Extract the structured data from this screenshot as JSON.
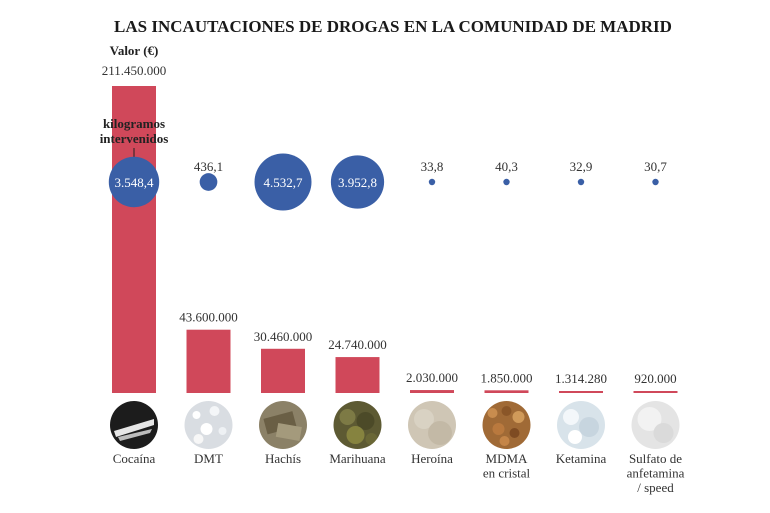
{
  "title": "LAS INCAUTACIONES DE DROGAS EN LA COMUNIDAD DE MADRID",
  "legend": {
    "value_label": "Valor (€)",
    "kg_label_line1": "kilogramos",
    "kg_label_line2": "intervenidos"
  },
  "colors": {
    "bar": "#d0485a",
    "bubble": "#3a5fa6",
    "text": "#333333"
  },
  "chart_data": {
    "type": "bar",
    "categories": [
      [
        "Cocaína"
      ],
      [
        "DMT"
      ],
      [
        "Hachís"
      ],
      [
        "Marihuana"
      ],
      [
        "Heroína"
      ],
      [
        "MDMA",
        "en cristal"
      ],
      [
        "Ketamina"
      ],
      [
        "Sulfato de",
        "anfetamina",
        "/ speed"
      ]
    ],
    "series": [
      {
        "name": "Valor (€)",
        "values": [
          211450000,
          43600000,
          30460000,
          24740000,
          2030000,
          1850000,
          1314280,
          920000
        ],
        "labels": [
          "211.450.000",
          "43.600.000",
          "30.460.000",
          "24.740.000",
          "2.030.000",
          "1.850.000",
          "1.314.280",
          "920.000"
        ]
      },
      {
        "name": "kilogramos intervenidos",
        "values": [
          3548.4,
          436.1,
          4532.7,
          3952.8,
          33.8,
          40.3,
          32.9,
          30.7
        ],
        "labels": [
          "3.548,4",
          "436,1",
          "4.532,7",
          "3.952,8",
          "33,8",
          "40,3",
          "32,9",
          "30,7"
        ]
      }
    ],
    "icons": [
      "cocaine-icon",
      "dmt-icon",
      "hashish-icon",
      "marijuana-icon",
      "heroin-icon",
      "mdma-icon",
      "ketamine-icon",
      "speed-icon"
    ],
    "ylim": [
      0,
      211450000
    ]
  }
}
